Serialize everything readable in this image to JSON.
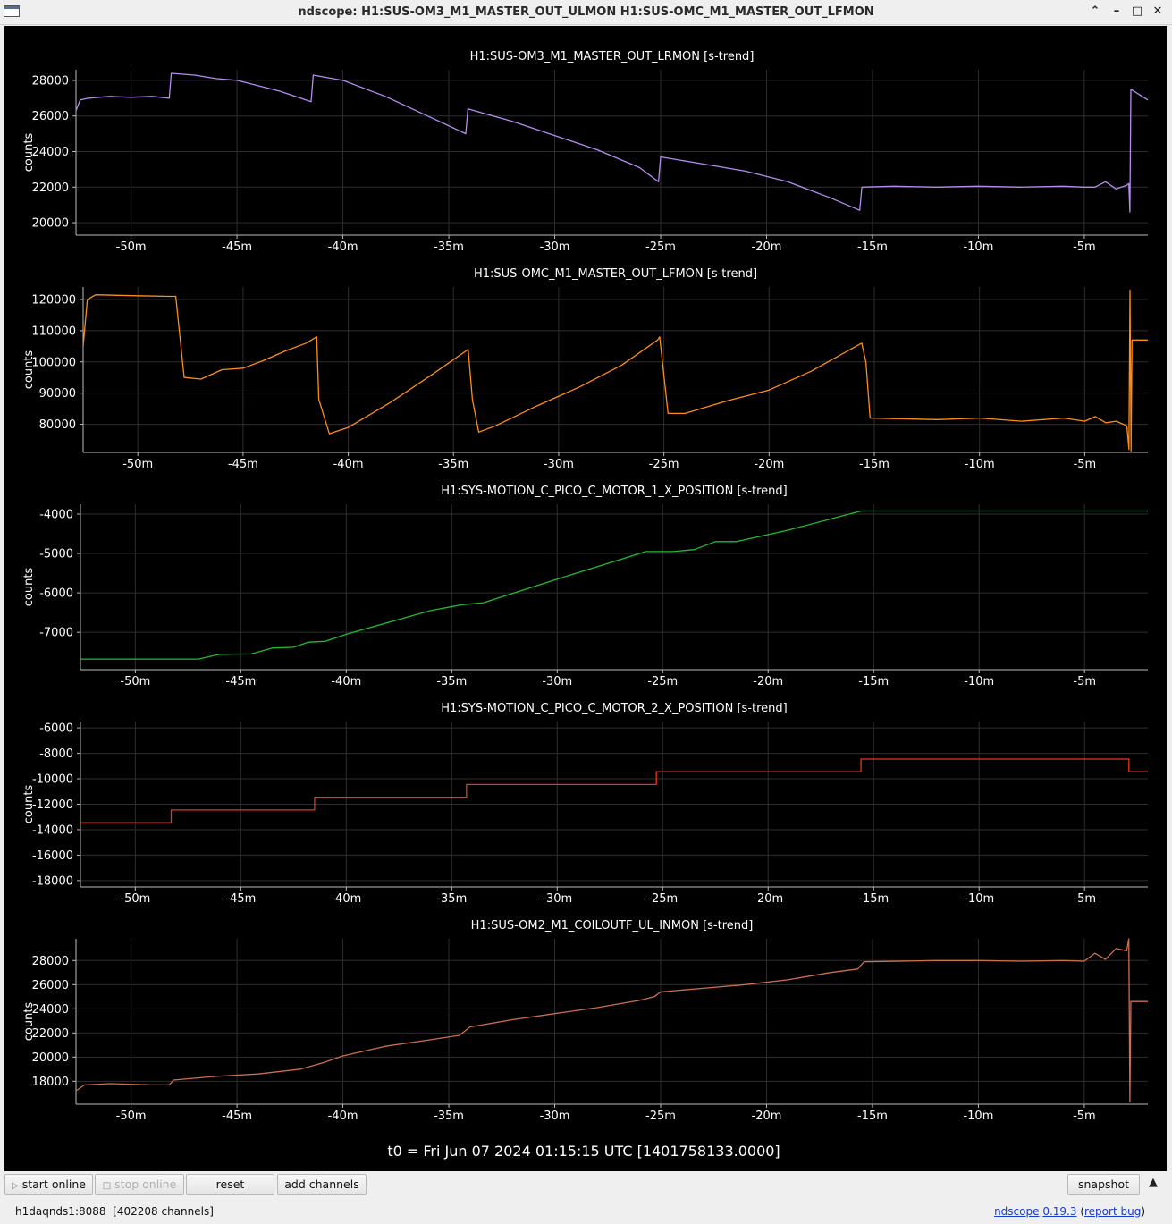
{
  "window": {
    "title": "ndscope: H1:SUS-OM3_M1_MASTER_OUT_ULMON H1:SUS-OMC_M1_MASTER_OUT_LFMON",
    "controls": [
      "up-arrow-icon",
      "minimize-icon",
      "maximize-icon",
      "close-icon"
    ]
  },
  "time_label": "t0 = Fri Jun 07 2024 01:15:15 UTC [1401758133.0000]",
  "toolbar": {
    "start_online": "start online",
    "stop_online": "stop online",
    "reset": "reset",
    "add_channels": "add channels",
    "snapshot": "snapshot"
  },
  "status": {
    "server": "h1daqnds1:8088",
    "channels": "[402208 channels]",
    "app_name": "ndscope",
    "version": "0.19.3",
    "report_bug": "report bug"
  },
  "colors": {
    "background": "#000000",
    "grid": "#2e2e2e",
    "axis_text": "#ffffff",
    "ch1": "#b68cf0",
    "ch2": "#ff8c1a",
    "ch3": "#22bb33",
    "ch4": "#ee3322",
    "ch5": "#cc6e50"
  },
  "chart_data": [
    {
      "type": "line",
      "title": "H1:SUS-OM3_M1_MASTER_OUT_LRMON [s-trend]",
      "ylabel": "counts",
      "xlabel": "",
      "xlim": [
        -52.6,
        -2.0
      ],
      "xticks": [
        -50,
        -45,
        -40,
        -35,
        -30,
        -25,
        -20,
        -15,
        -10,
        -5
      ],
      "xtick_labels": [
        "-50m",
        "-45m",
        "-40m",
        "-35m",
        "-30m",
        "-25m",
        "-20m",
        "-15m",
        "-10m",
        "-5m"
      ],
      "ylim": [
        19300,
        28600
      ],
      "yticks": [
        20000,
        22000,
        24000,
        26000,
        28000
      ],
      "grid": true,
      "x": [
        -52.6,
        -52.4,
        -52.0,
        -51.0,
        -50.0,
        -49.0,
        -48.2,
        -48.1,
        -47.0,
        -46.0,
        -45.0,
        -44.0,
        -43.0,
        -42.0,
        -41.5,
        -41.4,
        -40.0,
        -38.0,
        -36.0,
        -34.2,
        -34.1,
        -32.0,
        -30.0,
        -28.0,
        -26.0,
        -25.1,
        -25.0,
        -23.0,
        -21.0,
        -19.0,
        -17.0,
        -15.6,
        -15.5,
        -14.0,
        -12.0,
        -10.0,
        -8.0,
        -6.0,
        -5.0,
        -4.5,
        -4.0,
        -3.5,
        -3.0,
        -2.9,
        -2.85,
        -2.8,
        -2.0
      ],
      "y": [
        26300,
        26900,
        27000,
        27100,
        27050,
        27100,
        27000,
        28400,
        28300,
        28100,
        28000,
        27700,
        27400,
        27000,
        26800,
        28300,
        28000,
        27100,
        26000,
        25000,
        26400,
        25700,
        24900,
        24100,
        23100,
        22300,
        23700,
        23300,
        22900,
        22300,
        21400,
        20700,
        22000,
        22050,
        22000,
        22050,
        22000,
        22050,
        22000,
        22000,
        22300,
        21900,
        22100,
        22200,
        20600,
        27500,
        26900
      ],
      "line_color": "#b68cf0"
    },
    {
      "type": "line",
      "title": "H1:SUS-OMC_M1_MASTER_OUT_LFMON [s-trend]",
      "ylabel": "counts",
      "xlabel": "",
      "xlim": [
        -52.6,
        -2.0
      ],
      "xticks": [
        -50,
        -45,
        -40,
        -35,
        -30,
        -25,
        -20,
        -15,
        -10,
        -5
      ],
      "xtick_labels": [
        "-50m",
        "-45m",
        "-40m",
        "-35m",
        "-30m",
        "-25m",
        "-20m",
        "-15m",
        "-10m",
        "-5m"
      ],
      "ylim": [
        71000,
        124000
      ],
      "yticks": [
        80000,
        90000,
        100000,
        110000,
        120000
      ],
      "grid": true,
      "x": [
        -52.6,
        -52.4,
        -52.0,
        -50.0,
        -48.5,
        -48.2,
        -47.8,
        -47.0,
        -46.0,
        -45.0,
        -44.0,
        -43.0,
        -42.0,
        -41.5,
        -41.4,
        -40.9,
        -40.0,
        -38.0,
        -36.0,
        -34.3,
        -34.1,
        -33.8,
        -33.0,
        -31.0,
        -29.0,
        -27.0,
        -25.3,
        -25.2,
        -24.8,
        -24.0,
        -22.0,
        -20.0,
        -18.0,
        -15.6,
        -15.4,
        -15.2,
        -12.0,
        -10.0,
        -8.0,
        -6.0,
        -5.0,
        -4.5,
        -4.0,
        -3.5,
        -3.0,
        -2.9,
        -2.85,
        -2.8,
        -2.75,
        -2.0
      ],
      "y": [
        105000,
        120000,
        121500,
        121200,
        121000,
        121000,
        95000,
        94500,
        97500,
        98000,
        100500,
        103500,
        106000,
        108000,
        88000,
        77000,
        79000,
        87000,
        96000,
        104000,
        88000,
        77500,
        79500,
        86000,
        92000,
        99000,
        107000,
        108000,
        83500,
        83500,
        87500,
        91000,
        97000,
        106000,
        100000,
        82000,
        81500,
        82000,
        81000,
        82000,
        81000,
        82500,
        80500,
        81000,
        79500,
        72000,
        123000,
        71500,
        107000,
        107000
      ],
      "line_color": "#ff8c1a"
    },
    {
      "type": "line",
      "title": "H1:SYS-MOTION_C_PICO_C_MOTOR_1_X_POSITION [s-trend]",
      "ylabel": "counts",
      "xlabel": "",
      "xlim": [
        -52.6,
        -2.0
      ],
      "xticks": [
        -50,
        -45,
        -40,
        -35,
        -30,
        -25,
        -20,
        -15,
        -10,
        -5
      ],
      "xtick_labels": [
        "-50m",
        "-45m",
        "-40m",
        "-35m",
        "-30m",
        "-25m",
        "-20m",
        "-15m",
        "-10m",
        "-5m"
      ],
      "ylim": [
        -7950,
        -3750
      ],
      "yticks": [
        -7000,
        -6000,
        -5000,
        -4000
      ],
      "grid": true,
      "x": [
        -52.6,
        -47.0,
        -46.0,
        -44.5,
        -43.5,
        -42.5,
        -41.8,
        -41.0,
        -40.0,
        -38.0,
        -36.0,
        -34.5,
        -33.5,
        -30.0,
        -27.0,
        -25.8,
        -24.5,
        -23.5,
        -22.5,
        -21.5,
        -19.0,
        -15.6,
        -2.0
      ],
      "y": [
        -7680,
        -7680,
        -7560,
        -7550,
        -7400,
        -7380,
        -7250,
        -7230,
        -7050,
        -6750,
        -6450,
        -6300,
        -6250,
        -5650,
        -5150,
        -4950,
        -4950,
        -4900,
        -4700,
        -4700,
        -4400,
        -3920,
        -3920
      ],
      "line_color": "#22bb33"
    },
    {
      "type": "line",
      "title": "H1:SYS-MOTION_C_PICO_C_MOTOR_2_X_POSITION [s-trend]",
      "ylabel": "counts",
      "xlabel": "",
      "xlim": [
        -52.6,
        -2.0
      ],
      "xticks": [
        -50,
        -45,
        -40,
        -35,
        -30,
        -25,
        -20,
        -15,
        -10,
        -5
      ],
      "xtick_labels": [
        "-50m",
        "-45m",
        "-40m",
        "-35m",
        "-30m",
        "-25m",
        "-20m",
        "-15m",
        "-10m",
        "-5m"
      ],
      "ylim": [
        -18500,
        -5500
      ],
      "yticks": [
        -18000,
        -16000,
        -14000,
        -12000,
        -10000,
        -8000,
        -6000
      ],
      "grid": true,
      "x": [
        -52.6,
        -48.3,
        -48.3,
        -41.5,
        -41.5,
        -34.3,
        -34.3,
        -25.3,
        -25.3,
        -15.6,
        -15.6,
        -2.9,
        -2.9,
        -2.0
      ],
      "y": [
        -13450,
        -13450,
        -12450,
        -12450,
        -11450,
        -11450,
        -10450,
        -10450,
        -9450,
        -9450,
        -8450,
        -8450,
        -9450,
        -9450
      ],
      "line_color": "#ee3322"
    },
    {
      "type": "line",
      "title": "H1:SUS-OM2_M1_COILOUTF_UL_INMON [s-trend]",
      "ylabel": "counts",
      "xlabel": "",
      "xlim": [
        -52.6,
        -2.0
      ],
      "xticks": [
        -50,
        -45,
        -40,
        -35,
        -30,
        -25,
        -20,
        -15,
        -10,
        -5
      ],
      "xtick_labels": [
        "-50m",
        "-45m",
        "-40m",
        "-35m",
        "-30m",
        "-25m",
        "-20m",
        "-15m",
        "-10m",
        "-5m"
      ],
      "ylim": [
        16100,
        29800
      ],
      "yticks": [
        18000,
        20000,
        22000,
        24000,
        26000,
        28000
      ],
      "grid": true,
      "x": [
        -52.6,
        -52.2,
        -51.0,
        -49.0,
        -48.2,
        -48.0,
        -46.0,
        -44.0,
        -42.0,
        -41.0,
        -40.0,
        -38.0,
        -36.0,
        -34.5,
        -34.0,
        -32.0,
        -30.0,
        -28.0,
        -26.0,
        -25.3,
        -25.0,
        -23.0,
        -21.0,
        -19.0,
        -17.0,
        -15.7,
        -15.4,
        -12.0,
        -10.0,
        -8.0,
        -6.0,
        -5.0,
        -4.5,
        -4.0,
        -3.5,
        -3.0,
        -2.9,
        -2.85,
        -2.8,
        -2.0
      ],
      "y": [
        17200,
        17700,
        17800,
        17700,
        17700,
        18100,
        18400,
        18600,
        19000,
        19500,
        20100,
        20900,
        21400,
        21800,
        22500,
        23100,
        23600,
        24100,
        24700,
        25000,
        25400,
        25700,
        26000,
        26400,
        27000,
        27300,
        27900,
        28000,
        28000,
        27950,
        28000,
        27950,
        28600,
        28100,
        29000,
        28800,
        29800,
        16300,
        24600,
        24600
      ],
      "line_color": "#cc6e50"
    }
  ]
}
